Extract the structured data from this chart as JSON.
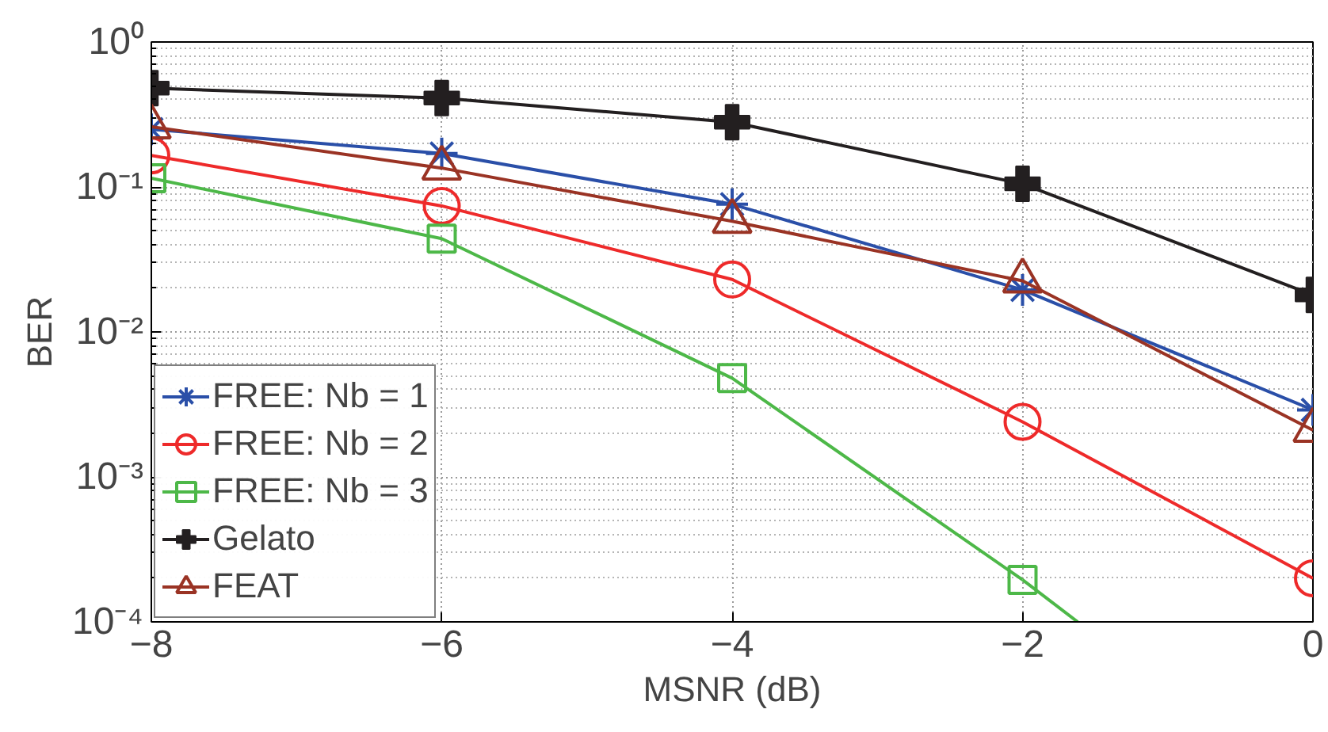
{
  "chart_data": {
    "type": "line",
    "xlabel": "MSNR (dB)",
    "ylabel": "BER",
    "log": "y",
    "x": [
      -8,
      -6,
      -4,
      -2,
      0
    ],
    "xlim": [
      -8,
      0
    ],
    "xticks": [
      {
        "value": -8,
        "label": "−8"
      },
      {
        "value": -6,
        "label": "−6"
      },
      {
        "value": -4,
        "label": "−4"
      },
      {
        "value": -2,
        "label": "−2"
      },
      0
    ],
    "ylim": [
      0.0001,
      1
    ],
    "yticks": [
      {
        "value": 0.0001,
        "label": "10⁻⁴"
      },
      {
        "value": 0.001,
        "label": "10⁻³"
      },
      {
        "value": 0.01,
        "label": "10⁻²"
      },
      {
        "value": 0.1,
        "label": "10⁻¹"
      },
      {
        "value": 1,
        "label": "10⁰"
      }
    ],
    "grid": true,
    "legend": "bottom left",
    "line_style": "solid",
    "series": [
      {
        "name": "FREE: Nb = 1",
        "color": "#2a4fa8",
        "marker": "cross",
        "values": [
          0.25,
          0.17,
          0.076,
          0.0195,
          0.0029
        ]
      },
      {
        "name": "FREE: Nb = 2",
        "color": "#ee2a2a",
        "marker": "circle",
        "values": [
          0.165,
          0.074,
          0.023,
          0.0024,
          0.0002
        ]
      },
      {
        "name": "FREE: Nb = 3",
        "color": "#4db848",
        "marker": "square",
        "values": [
          0.115,
          0.044,
          0.0048,
          0.000195,
          null
        ]
      },
      {
        "color": "#4db848",
        "marker": "none",
        "x": [
          -2,
          -1.62
        ],
        "values": [
          0.000195,
          0.0001
        ]
      },
      {
        "name": "Gelato",
        "color": "#231f20",
        "marker": "cross",
        "values": [
          0.48,
          0.41,
          0.28,
          0.105,
          0.018
        ]
      },
      {
        "name": "FEAT",
        "color": "#9a3324",
        "marker": "triangle",
        "values": [
          0.26,
          0.135,
          0.058,
          0.0225,
          0.0021
        ]
      }
    ]
  }
}
